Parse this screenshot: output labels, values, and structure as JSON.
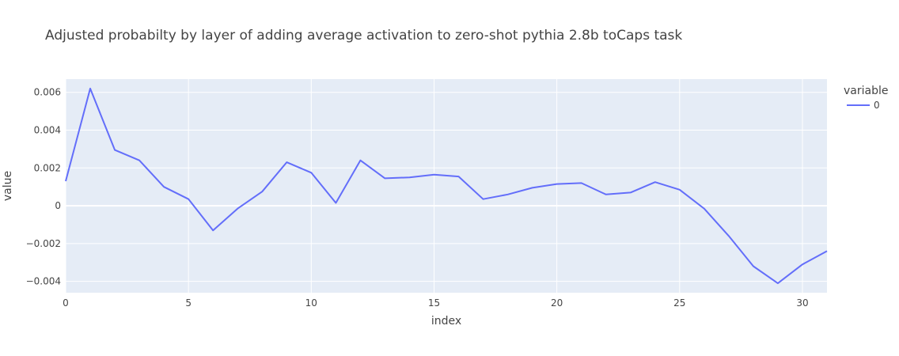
{
  "chart_data": {
    "type": "line",
    "title": "Adjusted probabilty by layer of adding average activation to zero-shot pythia 2.8b toCaps task",
    "xlabel": "index",
    "ylabel": "value",
    "xlim": [
      0,
      31
    ],
    "ylim": [
      -0.0046,
      0.0067
    ],
    "grid": true,
    "legend_position": "right",
    "legend_title": "variable",
    "x_ticks": [
      0,
      5,
      10,
      15,
      20,
      25,
      30
    ],
    "x_tick_labels": [
      "0",
      "5",
      "10",
      "15",
      "20",
      "25",
      "30"
    ],
    "y_ticks": [
      -0.004,
      -0.002,
      0,
      0.002,
      0.004,
      0.006
    ],
    "y_tick_labels": [
      "−0.004",
      "−0.002",
      "0",
      "0.002",
      "0.004",
      "0.006"
    ],
    "series": [
      {
        "name": "0",
        "color": "#636efa",
        "x": [
          0,
          1,
          2,
          3,
          4,
          5,
          6,
          7,
          8,
          9,
          10,
          11,
          12,
          13,
          14,
          15,
          16,
          17,
          18,
          19,
          20,
          21,
          22,
          23,
          24,
          25,
          26,
          27,
          28,
          29,
          30,
          31
        ],
        "values": [
          0.0013,
          0.0062,
          0.00295,
          0.0024,
          0.001,
          0.00035,
          -0.0013,
          -0.00015,
          0.00075,
          0.0023,
          0.00175,
          0.00015,
          0.0024,
          0.00145,
          0.0015,
          0.00165,
          0.00155,
          0.00035,
          0.0006,
          0.00095,
          0.00115,
          0.0012,
          0.0006,
          0.0007,
          0.00125,
          0.00085,
          -0.00015,
          -0.0016,
          -0.0032,
          -0.0041,
          -0.0031,
          -0.0024
        ]
      }
    ]
  },
  "colors": {
    "plot_background": "#e5ecf6",
    "grid": "#ffffff",
    "text": "#444444"
  }
}
